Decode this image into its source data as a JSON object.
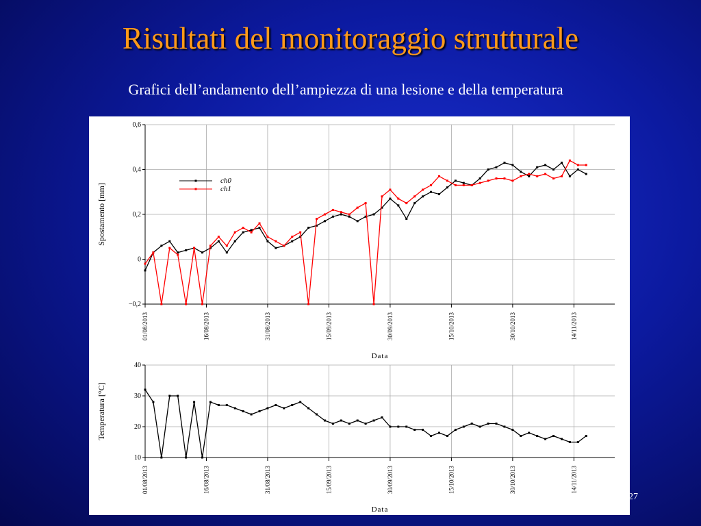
{
  "title": "Risultati del monitoraggio strutturale",
  "subtitle": "Grafici dell’andamento dell’ampiezza di una lesione e della temperatura",
  "page_number": "27",
  "chart_data": [
    {
      "type": "line",
      "xlabel": "Data",
      "ylabel": "Spostamento [mm]",
      "grid": true,
      "legend": "top-left",
      "x": [
        "2013-08-01",
        "2013-08-03",
        "2013-08-05",
        "2013-08-07",
        "2013-08-09",
        "2013-08-11",
        "2013-08-13",
        "2013-08-15",
        "2013-08-17",
        "2013-08-19",
        "2013-08-21",
        "2013-08-23",
        "2013-08-25",
        "2013-08-27",
        "2013-08-29",
        "2013-08-31",
        "2013-09-02",
        "2013-09-04",
        "2013-09-06",
        "2013-09-08",
        "2013-09-10",
        "2013-09-12",
        "2013-09-14",
        "2013-09-16",
        "2013-09-18",
        "2013-09-20",
        "2013-09-22",
        "2013-09-24",
        "2013-09-26",
        "2013-09-28",
        "2013-09-30",
        "2013-10-02",
        "2013-10-04",
        "2013-10-06",
        "2013-10-08",
        "2013-10-10",
        "2013-10-12",
        "2013-10-14",
        "2013-10-16",
        "2013-10-18",
        "2013-10-20",
        "2013-10-22",
        "2013-10-24",
        "2013-10-26",
        "2013-10-28",
        "2013-10-30",
        "2013-11-01",
        "2013-11-03",
        "2013-11-05",
        "2013-11-07",
        "2013-11-09",
        "2013-11-11",
        "2013-11-13",
        "2013-11-15",
        "2013-11-17"
      ],
      "xlim": [
        "2013-08-01",
        "2013-11-24"
      ],
      "xticks": [
        {
          "value": "2013-08-01",
          "label": "01/08/2013"
        },
        {
          "value": "2013-08-16",
          "label": "16/08/2013"
        },
        {
          "value": "2013-08-31",
          "label": "31/08/2013"
        },
        {
          "value": "2013-09-15",
          "label": "15/09/2013"
        },
        {
          "value": "2013-09-30",
          "label": "30/09/2013"
        },
        {
          "value": "2013-10-15",
          "label": "15/10/2013"
        },
        {
          "value": "2013-10-30",
          "label": "30/10/2013"
        },
        {
          "value": "2013-11-14",
          "label": "14/11/2013"
        }
      ],
      "ylim": [
        -0.2,
        0.6
      ],
      "yticks": [
        {
          "value": -0.2,
          "label": "−0,2"
        },
        0,
        {
          "value": 0.2,
          "label": "0,2"
        },
        {
          "value": 0.4,
          "label": "0,4"
        },
        {
          "value": 0.6,
          "label": "0,6"
        }
      ],
      "series": [
        {
          "name": "ch0",
          "color": "#000000",
          "values": [
            -0.05,
            0.03,
            0.06,
            0.08,
            0.03,
            0.04,
            0.05,
            0.03,
            0.05,
            0.08,
            0.03,
            0.08,
            0.12,
            0.13,
            0.14,
            0.08,
            0.05,
            0.06,
            0.08,
            0.1,
            0.14,
            0.15,
            0.17,
            0.19,
            0.2,
            0.19,
            0.17,
            0.19,
            0.2,
            0.23,
            0.27,
            0.24,
            0.18,
            0.25,
            0.28,
            0.3,
            0.29,
            0.32,
            0.35,
            0.34,
            0.33,
            0.36,
            0.4,
            0.41,
            0.43,
            0.42,
            0.39,
            0.37,
            0.41,
            0.42,
            0.4,
            0.43,
            0.37,
            0.4,
            0.38
          ]
        },
        {
          "name": "ch1",
          "color": "#ff0000",
          "values": [
            -0.02,
            0.03,
            -0.2,
            0.05,
            0.02,
            -0.2,
            0.05,
            -0.2,
            0.06,
            0.1,
            0.06,
            0.12,
            0.14,
            0.12,
            0.16,
            0.1,
            0.08,
            0.06,
            0.1,
            0.12,
            -0.2,
            0.18,
            0.2,
            0.22,
            0.21,
            0.2,
            0.23,
            0.25,
            -0.2,
            0.28,
            0.31,
            0.27,
            0.25,
            0.28,
            0.31,
            0.33,
            0.37,
            0.35,
            0.33,
            0.33,
            0.33,
            0.34,
            0.35,
            0.36,
            0.36,
            0.35,
            0.37,
            0.38,
            0.37,
            0.38,
            0.36,
            0.37,
            0.44,
            0.42,
            0.42
          ]
        }
      ]
    },
    {
      "type": "line",
      "xlabel": "Data",
      "ylabel": "Temperatura [°C]",
      "grid": true,
      "x": [
        "2013-08-01",
        "2013-08-03",
        "2013-08-05",
        "2013-08-07",
        "2013-08-09",
        "2013-08-11",
        "2013-08-13",
        "2013-08-15",
        "2013-08-17",
        "2013-08-19",
        "2013-08-21",
        "2013-08-23",
        "2013-08-25",
        "2013-08-27",
        "2013-08-29",
        "2013-08-31",
        "2013-09-02",
        "2013-09-04",
        "2013-09-06",
        "2013-09-08",
        "2013-09-10",
        "2013-09-12",
        "2013-09-14",
        "2013-09-16",
        "2013-09-18",
        "2013-09-20",
        "2013-09-22",
        "2013-09-24",
        "2013-09-26",
        "2013-09-28",
        "2013-09-30",
        "2013-10-02",
        "2013-10-04",
        "2013-10-06",
        "2013-10-08",
        "2013-10-10",
        "2013-10-12",
        "2013-10-14",
        "2013-10-16",
        "2013-10-18",
        "2013-10-20",
        "2013-10-22",
        "2013-10-24",
        "2013-10-26",
        "2013-10-28",
        "2013-10-30",
        "2013-11-01",
        "2013-11-03",
        "2013-11-05",
        "2013-11-07",
        "2013-11-09",
        "2013-11-11",
        "2013-11-13",
        "2013-11-15",
        "2013-11-17"
      ],
      "xlim": [
        "2013-08-01",
        "2013-11-24"
      ],
      "xticks": [
        {
          "value": "2013-08-01",
          "label": "01/08/2013"
        },
        {
          "value": "2013-08-16",
          "label": "16/08/2013"
        },
        {
          "value": "2013-08-31",
          "label": "31/08/2013"
        },
        {
          "value": "2013-09-15",
          "label": "15/09/2013"
        },
        {
          "value": "2013-09-30",
          "label": "30/09/2013"
        },
        {
          "value": "2013-10-15",
          "label": "15/10/2013"
        },
        {
          "value": "2013-10-30",
          "label": "30/10/2013"
        },
        {
          "value": "2013-11-14",
          "label": "14/11/2013"
        }
      ],
      "ylim": [
        10,
        40
      ],
      "yticks": [
        10,
        20,
        30,
        40
      ],
      "series": [
        {
          "color": "#000000",
          "values": [
            32,
            28,
            10,
            30,
            30,
            10,
            28,
            10,
            28,
            27,
            27,
            26,
            25,
            24,
            25,
            26,
            27,
            26,
            27,
            28,
            26,
            24,
            22,
            21,
            22,
            21,
            22,
            21,
            22,
            23,
            20,
            20,
            20,
            19,
            19,
            17,
            18,
            17,
            19,
            20,
            21,
            20,
            21,
            21,
            20,
            19,
            17,
            18,
            17,
            16,
            17,
            16,
            15,
            15,
            17
          ]
        }
      ]
    }
  ]
}
